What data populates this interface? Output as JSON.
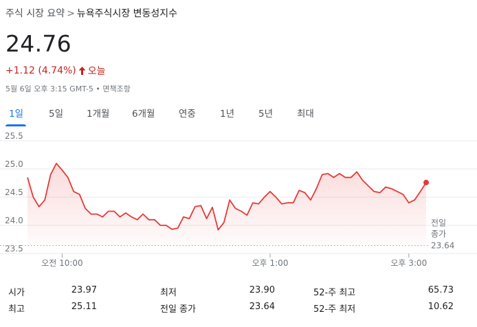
{
  "breadcrumb": {
    "parent": "주식 시장 요약",
    "separator": ">",
    "current": "뉴욕주식시장 변동성지수"
  },
  "quote": {
    "price": "24.76",
    "change": "+1.12 (4.74%)",
    "change_period": "오늘",
    "change_color": "#c5221f",
    "timestamp": "5월 6일 오후 3:15 GMT-5",
    "bullet": "•",
    "disclaimer": "면책조항"
  },
  "tabs": [
    {
      "label": "1일",
      "active": true
    },
    {
      "label": "5일"
    },
    {
      "label": "1개월"
    },
    {
      "label": "6개월"
    },
    {
      "label": "연중"
    },
    {
      "label": "1년"
    },
    {
      "label": "5년"
    },
    {
      "label": "최대"
    }
  ],
  "chart_data": {
    "type": "line",
    "title": "",
    "ylim": [
      23.5,
      25.5
    ],
    "xlim": [
      "9:30",
      "15:15"
    ],
    "y_ticks": [
      "25.5",
      "25.0",
      "24.5",
      "24.0",
      "23.5"
    ],
    "x_ticks": [
      "오전 10:00",
      "오후 1:00",
      "오후 3:00"
    ],
    "grid": true,
    "line_color": "#e53935",
    "previous_close": {
      "label_line1": "전일",
      "label_line2": "종가",
      "value": "23.64"
    },
    "series": [
      {
        "x": [
          "9:30",
          "9:35",
          "9:40",
          "9:45",
          "9:50",
          "9:55",
          "10:00",
          "10:05",
          "10:10",
          "10:15",
          "10:20",
          "10:25",
          "10:30",
          "10:35",
          "10:40",
          "10:45",
          "10:50",
          "10:55",
          "11:00",
          "11:05",
          "11:10",
          "11:15",
          "11:20",
          "11:25",
          "11:30",
          "11:35",
          "11:40",
          "11:45",
          "11:50",
          "11:55",
          "12:00",
          "12:05",
          "12:10",
          "12:15",
          "12:20",
          "12:25",
          "12:30",
          "12:35",
          "12:40",
          "12:45",
          "12:50",
          "12:55",
          "13:00",
          "13:05",
          "13:10",
          "13:15",
          "13:20",
          "13:25",
          "13:30",
          "13:35",
          "13:40",
          "13:45",
          "13:50",
          "13:55",
          "14:00",
          "14:05",
          "14:10",
          "14:15",
          "14:20",
          "14:25",
          "14:30",
          "14:35",
          "14:40",
          "14:45",
          "14:50",
          "14:55",
          "15:00",
          "15:05",
          "15:10",
          "15:15"
        ],
        "values": [
          24.85,
          24.5,
          24.33,
          24.45,
          24.9,
          25.1,
          24.98,
          24.85,
          24.6,
          24.55,
          24.3,
          24.2,
          24.2,
          24.15,
          24.25,
          24.25,
          24.15,
          24.22,
          24.15,
          24.1,
          24.2,
          24.1,
          24.1,
          24.0,
          24.0,
          23.93,
          23.95,
          24.15,
          24.12,
          24.33,
          24.35,
          24.12,
          24.32,
          23.92,
          24.05,
          24.45,
          24.3,
          24.25,
          24.18,
          24.4,
          24.38,
          24.5,
          24.6,
          24.5,
          24.38,
          24.4,
          24.4,
          24.62,
          24.58,
          24.45,
          24.65,
          24.9,
          24.92,
          24.85,
          24.92,
          24.85,
          24.85,
          24.95,
          24.8,
          24.7,
          24.6,
          24.58,
          24.68,
          24.65,
          24.6,
          24.55,
          24.4,
          24.45,
          24.6,
          24.76
        ]
      }
    ]
  },
  "stats": [
    {
      "label": "시가",
      "value": "23.97"
    },
    {
      "label": "최저",
      "value": "23.90"
    },
    {
      "label": "52-주 최고",
      "value": "65.73"
    },
    {
      "label": "최고",
      "value": "25.11"
    },
    {
      "label": "전일 종가",
      "value": "23.64"
    },
    {
      "label": "52-주 최저",
      "value": "10.62"
    }
  ]
}
